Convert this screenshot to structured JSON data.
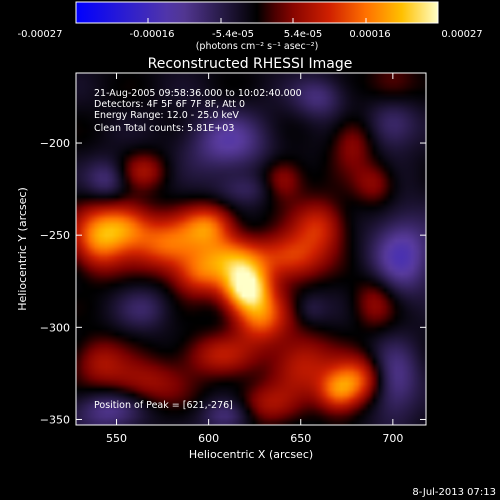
{
  "colorbar": {
    "tick_labels": [
      "-0.00027",
      "-0.00016",
      "-5.4e-05",
      "5.4e-05",
      "0.00016",
      "0.00027"
    ],
    "min": -0.00027,
    "max": 0.00027,
    "unit_label": "(photons cm⁻² s⁻¹ asec⁻²)",
    "colormap": [
      "#0000ff",
      "#5a3ca0",
      "#000000",
      "#7a0000",
      "#d02000",
      "#ff7000",
      "#ffc000",
      "#ffffc8"
    ]
  },
  "chart_data": {
    "type": "heatmap",
    "title": "Reconstructed RHESSI Image",
    "xlabel": "Heliocentric X (arcsec)",
    "ylabel": "Heliocentric Y (arcsec)",
    "xlim": [
      528,
      718
    ],
    "ylim": [
      -353,
      -162
    ],
    "x_ticks": [
      550,
      600,
      650,
      700
    ],
    "y_ticks": [
      -200,
      -250,
      -300,
      -350
    ],
    "annotations": [
      "21-Aug-2005 09:58:36.000 to 10:02:40.000",
      "Detectors: 4F 5F 6F 7F 8F, Att 0",
      "Energy Range: 12.0 - 25.0 keV",
      "Clean     Total counts: 5.81E+03"
    ],
    "peak_label": "Position of Peak = [621,-276]",
    "peak": [
      621,
      -276
    ],
    "sources": [
      {
        "x": 620,
        "y": -278,
        "sx": 9,
        "sy": 9,
        "a": 1.0
      },
      {
        "x": 612,
        "y": -262,
        "sx": 14,
        "sy": 8,
        "a": 0.55
      },
      {
        "x": 628,
        "y": -294,
        "sx": 10,
        "sy": 10,
        "a": 0.6
      },
      {
        "x": 600,
        "y": -245,
        "sx": 10,
        "sy": 8,
        "a": 0.6
      },
      {
        "x": 578,
        "y": -255,
        "sx": 13,
        "sy": 10,
        "a": 0.6
      },
      {
        "x": 555,
        "y": -245,
        "sx": 10,
        "sy": 9,
        "a": 0.55
      },
      {
        "x": 540,
        "y": -252,
        "sx": 10,
        "sy": 12,
        "a": 0.65
      },
      {
        "x": 595,
        "y": -272,
        "sx": 10,
        "sy": 8,
        "a": 0.45
      },
      {
        "x": 645,
        "y": -262,
        "sx": 12,
        "sy": 9,
        "a": 0.5
      },
      {
        "x": 660,
        "y": -245,
        "sx": 10,
        "sy": 10,
        "a": 0.45
      },
      {
        "x": 640,
        "y": -220,
        "sx": 8,
        "sy": 8,
        "a": 0.35
      },
      {
        "x": 650,
        "y": -320,
        "sx": 12,
        "sy": 12,
        "a": 0.4
      },
      {
        "x": 670,
        "y": -335,
        "sx": 8,
        "sy": 8,
        "a": 0.55
      },
      {
        "x": 682,
        "y": -328,
        "sx": 10,
        "sy": 9,
        "a": 0.55
      },
      {
        "x": 605,
        "y": -315,
        "sx": 14,
        "sy": 8,
        "a": 0.35
      },
      {
        "x": 565,
        "y": -330,
        "sx": 16,
        "sy": 9,
        "a": 0.32
      },
      {
        "x": 540,
        "y": -318,
        "sx": 10,
        "sy": 9,
        "a": 0.3
      },
      {
        "x": 630,
        "y": -342,
        "sx": 12,
        "sy": 8,
        "a": 0.3
      },
      {
        "x": 690,
        "y": -286,
        "sx": 8,
        "sy": 10,
        "a": 0.28
      },
      {
        "x": 565,
        "y": -215,
        "sx": 9,
        "sy": 7,
        "a": 0.3
      },
      {
        "x": 678,
        "y": -200,
        "sx": 8,
        "sy": 10,
        "a": 0.28
      },
      {
        "x": 700,
        "y": -168,
        "sx": 10,
        "sy": 9,
        "a": 0.22
      },
      {
        "x": 690,
        "y": -222,
        "sx": 8,
        "sy": 8,
        "a": 0.28
      },
      {
        "x": 545,
        "y": -220,
        "sx": 8,
        "sy": 8,
        "a": -0.3
      },
      {
        "x": 610,
        "y": -200,
        "sx": 16,
        "sy": 12,
        "a": -0.38
      },
      {
        "x": 700,
        "y": -190,
        "sx": 10,
        "sy": 10,
        "a": -0.3
      },
      {
        "x": 705,
        "y": -260,
        "sx": 12,
        "sy": 16,
        "a": -0.45
      },
      {
        "x": 565,
        "y": -290,
        "sx": 10,
        "sy": 8,
        "a": -0.2
      },
      {
        "x": 700,
        "y": -330,
        "sx": 10,
        "sy": 14,
        "a": -0.4
      },
      {
        "x": 545,
        "y": -345,
        "sx": 14,
        "sy": 8,
        "a": -0.35
      },
      {
        "x": 610,
        "y": -348,
        "sx": 10,
        "sy": 6,
        "a": -0.3
      },
      {
        "x": 660,
        "y": -175,
        "sx": 10,
        "sy": 8,
        "a": -0.3
      },
      {
        "x": 620,
        "y": -225,
        "sx": 12,
        "sy": 6,
        "a": -0.2
      },
      {
        "x": 655,
        "y": -290,
        "sx": 6,
        "sy": 6,
        "a": -0.15
      }
    ]
  },
  "timestamp": "8-Jul-2013 07:13"
}
